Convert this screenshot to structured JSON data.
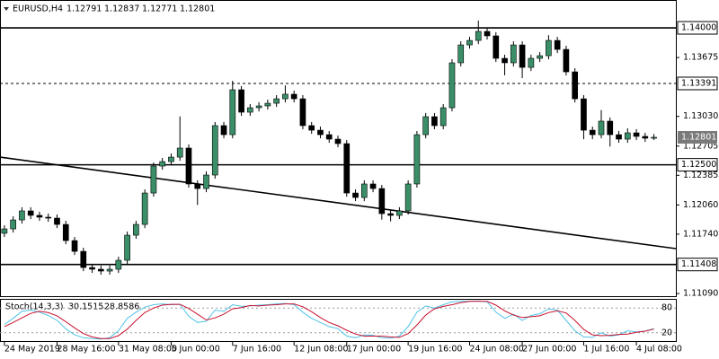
{
  "chart_data": [
    {
      "type": "candlestick",
      "title": "EURUSD,H4",
      "up_color": "#3a8f68",
      "down_color": "#000000",
      "xlim": [
        -0.5,
        76.5
      ],
      "ylim": [
        1.11061,
        1.14305
      ],
      "yticks": [
        1.13675,
        {
          "value": 1.1303,
          "label": "1.13030"
        },
        1.12705,
        1.12385,
        {
          "value": 1.1206,
          "label": "1.12060"
        },
        {
          "value": 1.1174,
          "label": "1.11740"
        },
        {
          "value": 1.1109,
          "label": "1.11090"
        }
      ],
      "xticks": [
        {
          "value": 0,
          "label": "24 May 2019"
        },
        {
          "value": 6,
          "label": "28 May 16:00"
        },
        {
          "value": 13,
          "label": "31 May 08:00"
        },
        {
          "value": 19,
          "label": "5 Jun 00:00"
        },
        {
          "value": 26,
          "label": "7 Jun 16:00"
        },
        {
          "value": 33,
          "label": "12 Jun 08:00"
        },
        {
          "value": 39,
          "label": "17 Jun 00:00"
        },
        {
          "value": 46,
          "label": "19 Jun 16:00"
        },
        {
          "value": 53,
          "label": "24 Jun 08:00"
        },
        {
          "value": 59,
          "label": "27 Jun 00:00"
        },
        {
          "value": 66,
          "label": "1 Jul 16:00"
        },
        {
          "value": 72,
          "label": "4 Jul 08:00"
        }
      ],
      "levels": [
        {
          "value": 1.14,
          "label": "1.14000",
          "dash": false
        },
        {
          "value": 1.13391,
          "dash": true
        },
        {
          "value": 1.125,
          "label": "1.12500",
          "dash": false
        },
        {
          "value": 1.11408,
          "dash": false
        }
      ],
      "trendlines": [
        {
          "start": [
            -0.5,
            1.12584
          ],
          "end": [
            76.5,
            1.11582
          ]
        }
      ],
      "open": [
        1.1175,
        1.11798,
        1.11896,
        1.11995,
        1.11946,
        1.11926,
        1.11916,
        1.11847,
        1.1167,
        1.11552,
        1.11375,
        1.11356,
        1.11336,
        1.11356,
        1.11454,
        1.11729,
        1.11847,
        1.12191,
        1.12486,
        1.12535,
        1.12584,
        1.12683,
        1.1229,
        1.1224,
        1.12388,
        1.12929,
        1.1283,
        1.13322,
        1.13076,
        1.13125,
        1.13145,
        1.13174,
        1.13223,
        1.13273,
        1.13223,
        1.12929,
        1.12879,
        1.1283,
        1.12781,
        1.12732,
        1.12191,
        1.12142,
        1.1229,
        1.1224,
        1.11965,
        1.11946,
        1.11995,
        1.1229,
        1.1283,
        1.13027,
        1.12929,
        1.13125,
        1.13617,
        1.13813,
        1.13862,
        1.13961,
        1.13912,
        1.13666,
        1.13617,
        1.13813,
        1.13567,
        1.13666,
        1.13695,
        1.13862,
        1.13764,
        1.13518,
        1.13223,
        1.12879,
        1.1283,
        1.12978,
        1.1283,
        1.12781,
        1.1285,
        1.12811,
        1.12791
      ],
      "high": [
        1.11838,
        1.11936,
        1.12035,
        1.12035,
        1.11986,
        1.11966,
        1.11956,
        1.11887,
        1.1171,
        1.11592,
        1.11415,
        1.11396,
        1.11396,
        1.11494,
        1.11769,
        1.11887,
        1.12231,
        1.12526,
        1.12575,
        1.12624,
        1.1303,
        1.12723,
        1.1233,
        1.12428,
        1.12969,
        1.12969,
        1.1342,
        1.13362,
        1.13165,
        1.13185,
        1.13214,
        1.13263,
        1.1337,
        1.13313,
        1.13263,
        1.12969,
        1.12919,
        1.1287,
        1.12821,
        1.12772,
        1.12231,
        1.1233,
        1.1233,
        1.1228,
        1.12005,
        1.12035,
        1.1233,
        1.1287,
        1.13067,
        1.13067,
        1.13165,
        1.13657,
        1.13853,
        1.13902,
        1.1408,
        1.14001,
        1.13952,
        1.13706,
        1.13853,
        1.13853,
        1.13706,
        1.13735,
        1.1392,
        1.13902,
        1.13804,
        1.13558,
        1.13263,
        1.12919,
        1.131,
        1.13018,
        1.1287,
        1.129,
        1.1289,
        1.12851,
        1.12837
      ],
      "low": [
        1.1171,
        1.11758,
        1.11856,
        1.11906,
        1.11886,
        1.11876,
        1.11807,
        1.1163,
        1.11512,
        1.11335,
        1.11316,
        1.11296,
        1.11296,
        1.11316,
        1.11414,
        1.11689,
        1.11807,
        1.12151,
        1.12446,
        1.12495,
        1.12544,
        1.1225,
        1.1206,
        1.122,
        1.12348,
        1.1279,
        1.1279,
        1.13036,
        1.13036,
        1.13085,
        1.13105,
        1.13134,
        1.13183,
        1.13183,
        1.12889,
        1.12839,
        1.1279,
        1.12741,
        1.12692,
        1.12151,
        1.12102,
        1.12102,
        1.122,
        1.119,
        1.1188,
        1.11906,
        1.11955,
        1.1225,
        1.1279,
        1.12889,
        1.12889,
        1.13085,
        1.13577,
        1.13773,
        1.13822,
        1.13872,
        1.13626,
        1.1348,
        1.13577,
        1.1345,
        1.13527,
        1.13626,
        1.13655,
        1.13724,
        1.13478,
        1.13183,
        1.1278,
        1.1278,
        1.1279,
        1.127,
        1.12741,
        1.12741,
        1.12771,
        1.12751,
        1.12771
      ],
      "close": [
        1.11798,
        1.11896,
        1.11995,
        1.11946,
        1.11926,
        1.11916,
        1.11847,
        1.1167,
        1.11552,
        1.11375,
        1.11356,
        1.11336,
        1.11356,
        1.11454,
        1.11729,
        1.11847,
        1.12191,
        1.12486,
        1.12535,
        1.12584,
        1.12683,
        1.1229,
        1.1224,
        1.12388,
        1.12929,
        1.1283,
        1.13322,
        1.13076,
        1.13125,
        1.13145,
        1.13174,
        1.13223,
        1.13273,
        1.13223,
        1.12929,
        1.12879,
        1.1283,
        1.12781,
        1.12732,
        1.12191,
        1.12142,
        1.1229,
        1.1224,
        1.11965,
        1.11946,
        1.11995,
        1.1229,
        1.1283,
        1.13027,
        1.12929,
        1.13125,
        1.13617,
        1.13813,
        1.13862,
        1.13961,
        1.13912,
        1.13666,
        1.13617,
        1.13813,
        1.13567,
        1.13666,
        1.13695,
        1.13862,
        1.13764,
        1.13518,
        1.13223,
        1.12879,
        1.1283,
        1.12978,
        1.1283,
        1.12781,
        1.1285,
        1.12811,
        1.12791,
        1.12801
      ]
    },
    {
      "type": "line",
      "title": "Stoch(14,3,3)",
      "ylim": [
        0,
        100
      ],
      "levels": [
        80,
        20
      ],
      "series": [
        {
          "color": "#4fc3e8",
          "values": [
            40,
            55,
            72,
            75,
            70,
            62,
            50,
            30,
            15,
            8,
            6,
            5,
            8,
            25,
            55,
            70,
            82,
            88,
            90,
            88,
            89,
            60,
            45,
            48,
            75,
            72,
            88,
            84,
            85,
            87,
            88,
            90,
            91,
            88,
            70,
            55,
            45,
            35,
            30,
            12,
            8,
            15,
            14,
            8,
            7,
            12,
            35,
            70,
            85,
            80,
            88,
            95,
            96,
            96,
            97,
            95,
            70,
            55,
            65,
            50,
            62,
            66,
            78,
            75,
            50,
            25,
            10,
            9,
            20,
            12,
            15,
            25,
            22,
            24,
            30.1515
          ]
        },
        {
          "color": "#c8102e",
          "values": [
            35,
            45,
            56,
            67,
            72,
            69,
            61,
            47,
            32,
            18,
            10,
            6,
            6,
            13,
            29,
            50,
            69,
            80,
            87,
            89,
            89,
            79,
            65,
            51,
            56,
            65,
            78,
            81,
            86,
            85,
            87,
            88,
            90,
            90,
            83,
            71,
            57,
            45,
            37,
            26,
            17,
            12,
            12,
            12,
            10,
            9,
            18,
            39,
            63,
            78,
            84,
            88,
            93,
            96,
            96,
            96,
            87,
            73,
            63,
            57,
            59,
            61,
            69,
            73,
            68,
            50,
            28,
            15,
            13,
            14,
            16,
            17,
            21,
            24,
            28.8586
          ]
        }
      ]
    }
  ]
}
